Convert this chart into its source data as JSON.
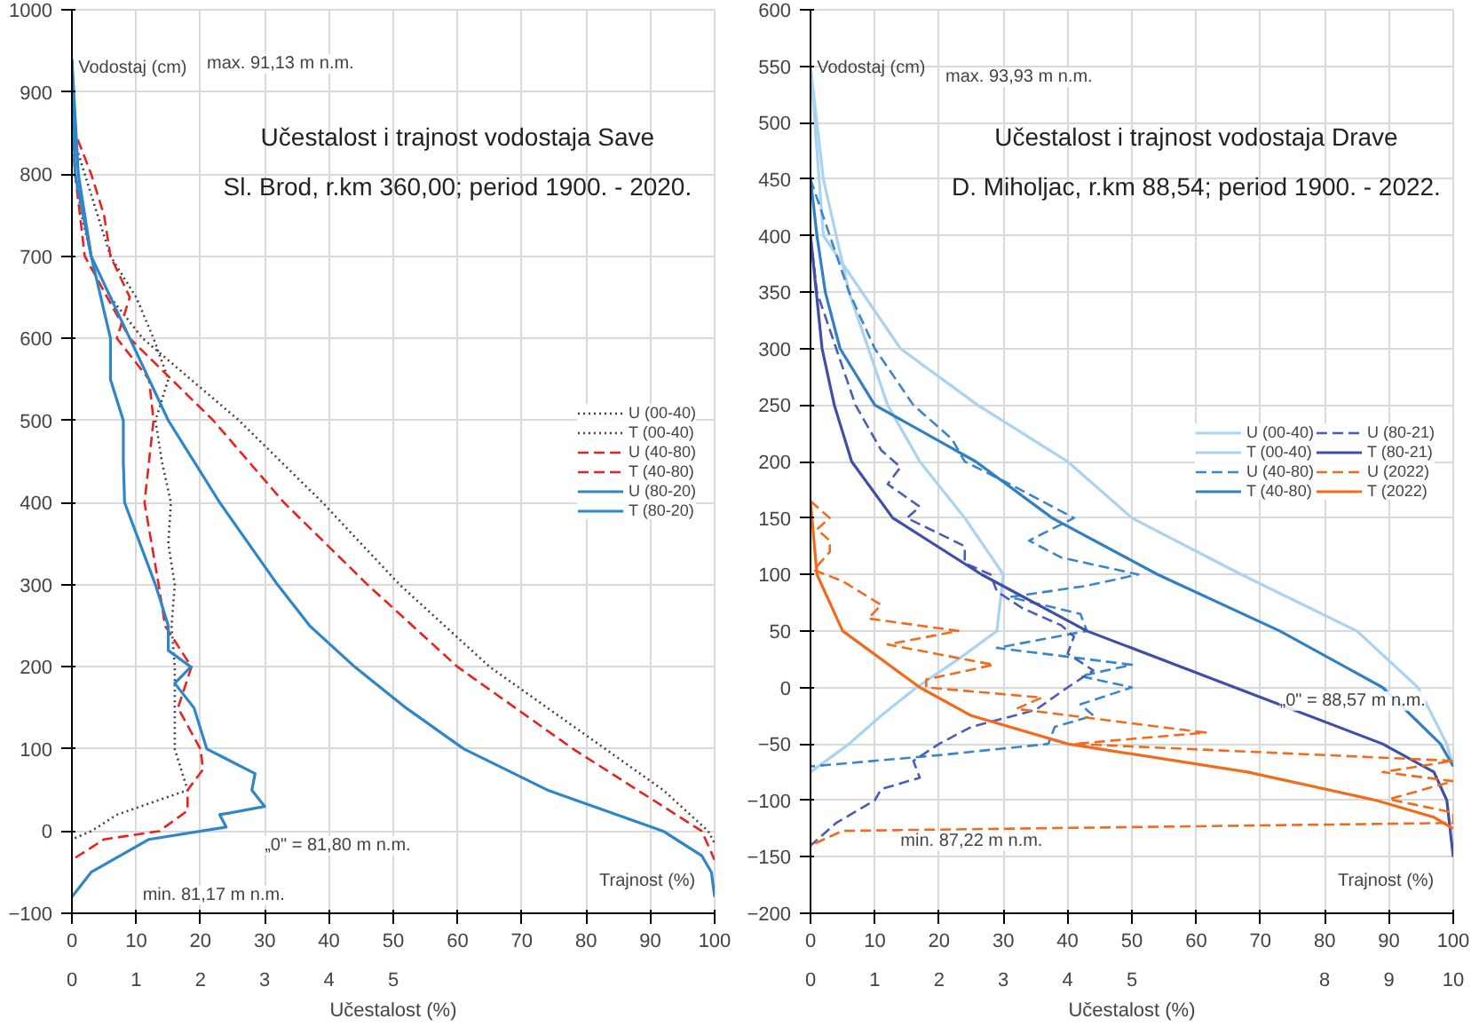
{
  "chart_data": [
    {
      "type": "line",
      "title": "Učestalost i trajnost vodostaja Save",
      "subtitle": "Sl. Brod, r.km 360,00; period 1900. - 2020.",
      "ylabel": "Vodostaj (cm)",
      "xlabel": "Trajnost (%)",
      "x2label": "Učestalost (%)",
      "xlim": [
        0,
        100
      ],
      "xticks": [
        0,
        10,
        20,
        30,
        40,
        50,
        60,
        70,
        80,
        90,
        100
      ],
      "x2lim": [
        0,
        10
      ],
      "x2ticks": [
        0,
        1,
        2,
        3,
        4,
        5
      ],
      "ylim": [
        -100,
        1000
      ],
      "yticks": [
        -100,
        0,
        100,
        200,
        300,
        400,
        500,
        600,
        700,
        800,
        900,
        1000
      ],
      "grid": true,
      "legend": "right",
      "annotations": [
        "max. 91,13 m n.m.",
        "„0\" = 81,80 m n.m.",
        "min. 81,17 m n.m."
      ],
      "series": [
        {
          "name": "U (00-40)",
          "color": "#404040",
          "axis": "x2",
          "line_style": "dotted",
          "x": [
            0,
            0.2,
            0.6,
            1.0,
            1.27,
            1.5,
            1.3,
            1.4,
            1.54,
            1.5,
            1.6,
            1.55,
            1.6,
            1.6,
            1.8,
            0.7,
            0.3,
            0
          ],
          "values": [
            850,
            800,
            700,
            650,
            600,
            550,
            500,
            450,
            400,
            350,
            300,
            250,
            200,
            100,
            50,
            20,
            0,
            -10
          ]
        },
        {
          "name": "T (00-40)",
          "color": "#5a3a2a",
          "line_style": "dotted",
          "x": [
            0,
            0.5,
            1.5,
            3,
            6,
            11,
            26,
            39,
            51,
            65,
            83,
            92,
            99,
            100
          ],
          "values": [
            850,
            800,
            750,
            700,
            650,
            600,
            500,
            400,
            300,
            200,
            100,
            50,
            0,
            -15
          ]
        },
        {
          "name": "U (40-80)",
          "color": "#e8231f",
          "axis": "x2",
          "line_style": "dashed",
          "x": [
            0,
            0.3,
            0.5,
            0.6,
            0.9,
            0.7,
            1.2,
            1.27,
            1.2,
            1.13,
            1.35,
            1.45,
            1.86,
            1.65,
            2.0,
            2.04,
            1.8,
            1.8,
            1.36,
            0.5,
            0
          ],
          "values": [
            860,
            800,
            750,
            700,
            650,
            600,
            550,
            500,
            450,
            400,
            300,
            250,
            200,
            150,
            100,
            75,
            50,
            25,
            0,
            -10,
            -35
          ]
        },
        {
          "name": "T (40-80)",
          "color": "#e8231f",
          "line_style": "dashed",
          "x": [
            0,
            0.5,
            2,
            9,
            22,
            33,
            46,
            60,
            78,
            88,
            98,
            100
          ],
          "values": [
            860,
            800,
            700,
            600,
            500,
            400,
            300,
            200,
            100,
            50,
            0,
            -35
          ]
        },
        {
          "name": "U (80-20)",
          "color": "#2e86c8",
          "axis": "x2",
          "line_style": "solid",
          "x": [
            0,
            0.1,
            0.3,
            0.6,
            0.6,
            0.8,
            0.8,
            0.82,
            1.3,
            1.5,
            1.5,
            1.85,
            1.6,
            1.9,
            2.1,
            2.85,
            2.8,
            3.0,
            2.3,
            2.4,
            1.2,
            0.3,
            0
          ],
          "values": [
            940,
            800,
            700,
            600,
            550,
            500,
            450,
            400,
            300,
            250,
            220,
            200,
            180,
            150,
            100,
            70,
            50,
            30,
            20,
            5,
            -10,
            -50,
            -80
          ]
        },
        {
          "name": "T (80-20)",
          "color": "#2e86c8",
          "line_style": "solid",
          "x": [
            0,
            0.5,
            3,
            9,
            15,
            23,
            32,
            37,
            44,
            52,
            61,
            74,
            92,
            98,
            99.5,
            100
          ],
          "values": [
            940,
            800,
            700,
            600,
            500,
            400,
            300,
            250,
            200,
            150,
            100,
            50,
            0,
            -30,
            -50,
            -80
          ]
        }
      ]
    },
    {
      "type": "line",
      "title": "Učestalost i trajnost vodostaja Drave",
      "subtitle": "D. Miholjac, r.km 88,54; period 1900. - 2022.",
      "ylabel": "Vodostaj (cm)",
      "xlabel": "Trajnost (%)",
      "x2label": "Učestalost (%)",
      "xlim": [
        0,
        100
      ],
      "xticks": [
        0,
        10,
        20,
        30,
        40,
        50,
        60,
        70,
        80,
        90,
        100
      ],
      "x2lim": [
        0,
        10
      ],
      "x2ticks": [
        0,
        1,
        2,
        3,
        4,
        5,
        8,
        9,
        10
      ],
      "ylim": [
        -200,
        600
      ],
      "yticks": [
        -200,
        -150,
        -100,
        -50,
        0,
        50,
        100,
        150,
        200,
        250,
        300,
        350,
        400,
        450,
        500,
        550,
        600
      ],
      "grid": true,
      "legend": "right",
      "annotations": [
        "max. 93,93 m n.m.",
        "„0\" = 88,57 m n.m.",
        "min. 87,22 m n.m."
      ],
      "series": [
        {
          "name": "U (00-40)",
          "color": "#a9d3ee",
          "axis": "x2",
          "line_style": "solid",
          "x": [
            0,
            0.2,
            0.6,
            1.2,
            1.7,
            2.4,
            3.0,
            2.9,
            2.3,
            1.65,
            1.1,
            0.6,
            0
          ],
          "values": [
            550,
            450,
            350,
            250,
            200,
            150,
            100,
            50,
            25,
            0,
            -25,
            -50,
            -75
          ]
        },
        {
          "name": "T (00-40)",
          "color": "#a9d3ee",
          "line_style": "solid",
          "x": [
            0,
            2,
            14,
            26,
            40,
            50,
            67,
            85,
            94.5,
            99,
            100
          ],
          "values": [
            550,
            400,
            300,
            250,
            200,
            150,
            100,
            50,
            0,
            -50,
            -70
          ]
        },
        {
          "name": "U (40-80)",
          "color": "#3a86cc",
          "axis": "x2",
          "line_style": "dashed",
          "x": [
            0,
            0.3,
            0.6,
            1.0,
            1.6,
            2.2,
            2.4,
            3.1,
            4.1,
            3.4,
            3.9,
            5.1,
            4.3,
            3.1,
            4.2,
            4.3,
            2.9,
            5.0,
            4.2,
            5.0,
            4.2,
            4.4,
            3.8,
            3.7,
            2.0,
            0
          ],
          "values": [
            450,
            400,
            350,
            300,
            250,
            220,
            200,
            180,
            150,
            130,
            115,
            100,
            90,
            80,
            65,
            50,
            35,
            20,
            10,
            0,
            -15,
            -25,
            -35,
            -50,
            -60,
            -70
          ]
        },
        {
          "name": "T (40-80)",
          "color": "#2f7fc4",
          "line_style": "solid",
          "x": [
            0,
            1,
            2.3,
            4.6,
            10,
            25.7,
            37.6,
            54,
            73,
            89,
            98,
            100
          ],
          "values": [
            450,
            400,
            350,
            300,
            250,
            200,
            150,
            100,
            50,
            0,
            -50,
            -70
          ]
        },
        {
          "name": "U (80-21)",
          "color": "#4a5cb8",
          "axis": "x2",
          "line_style": "dashed",
          "x": [
            0,
            0.1,
            0.4,
            0.7,
            1.1,
            1.4,
            1.2,
            1.7,
            1.5,
            2.4,
            2.4,
            2.8,
            2.9,
            3.3,
            3.9,
            4.1,
            4.0,
            4.4,
            4.0,
            3.5,
            2.5,
            2.0,
            1.6,
            1.7,
            1.1,
            1.0,
            0.4,
            0
          ],
          "values": [
            400,
            350,
            300,
            250,
            210,
            195,
            180,
            160,
            150,
            125,
            110,
            100,
            85,
            70,
            55,
            45,
            30,
            15,
            0,
            -20,
            -35,
            -50,
            -65,
            -80,
            -90,
            -100,
            -120,
            -140
          ]
        },
        {
          "name": "T (80-21)",
          "color": "#3f4fa8",
          "line_style": "solid",
          "x": [
            0,
            0.9,
            1.8,
            3.7,
            6.4,
            12.8,
            26.6,
            43,
            66,
            89,
            97,
            99,
            100
          ],
          "values": [
            400,
            350,
            300,
            250,
            200,
            150,
            100,
            50,
            0,
            -50,
            -75,
            -100,
            -150
          ]
        },
        {
          "name": "U (2022)",
          "color": "#f26b1d",
          "axis": "x2",
          "line_style": "dashed",
          "x": [
            0,
            0.3,
            0.1,
            0.3,
            0.3,
            0.05,
            0.5,
            1.1,
            0.9,
            2.3,
            1.2,
            2.85,
            1.8,
            1.8,
            3.6,
            3.2,
            6.15,
            4.1,
            10,
            8.9,
            10,
            9.0,
            10,
            10,
            0.5,
            0
          ],
          "values": [
            165,
            150,
            140,
            130,
            120,
            104,
            94,
            73,
            61,
            50,
            38,
            20,
            7,
            0,
            -9,
            -19,
            -40,
            -50,
            -65,
            -75,
            -83,
            -99,
            -111,
            -120,
            -127,
            -140
          ]
        },
        {
          "name": "T (2022)",
          "color": "#f26b1d",
          "line_style": "solid",
          "x": [
            0,
            1,
            5,
            17,
            25,
            40,
            68,
            88,
            97,
            100
          ],
          "values": [
            165,
            100,
            50,
            0,
            -25,
            -50,
            -75,
            -100,
            -115,
            -125
          ]
        }
      ]
    }
  ]
}
